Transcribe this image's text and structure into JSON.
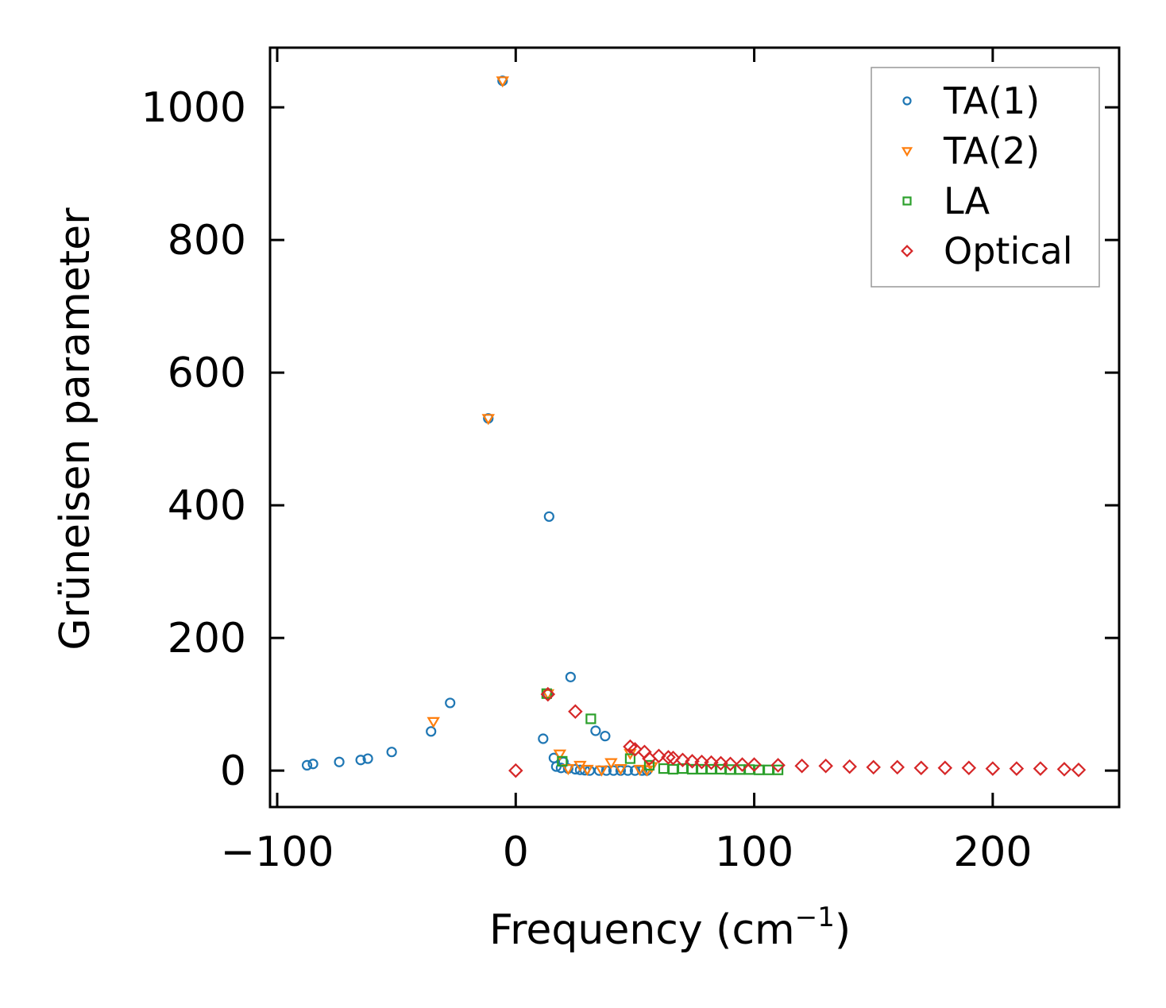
{
  "chart_data": {
    "type": "scatter",
    "title": "",
    "xlabel": "Frequency (cm",
    "xlabel_superscript": "−1",
    "xlabel_suffix": ")",
    "ylabel": "Grüneisen parameter",
    "xlim": [
      -103,
      253
    ],
    "ylim": [
      -55,
      1090
    ],
    "xticks": [
      -100,
      0,
      100,
      200
    ],
    "xtick_labels": [
      "−100",
      "0",
      "100",
      "200"
    ],
    "yticks": [
      0,
      200,
      400,
      600,
      800,
      1000
    ],
    "ytick_labels": [
      "0",
      "200",
      "400",
      "600",
      "800",
      "1000"
    ],
    "grid": false,
    "legend_position": "top-right",
    "series": [
      {
        "name": "TA(1)",
        "marker": "circle",
        "color": "#1f77b4",
        "points": [
          [
            -87.5,
            8
          ],
          [
            -85,
            10
          ],
          [
            -74,
            13
          ],
          [
            -65,
            16
          ],
          [
            -62,
            18
          ],
          [
            -52,
            28
          ],
          [
            -35.5,
            59
          ],
          [
            -27.5,
            102
          ],
          [
            -11.5,
            531
          ],
          [
            -5.5,
            1040
          ],
          [
            11.5,
            48
          ],
          [
            13.5,
            115
          ],
          [
            14,
            383
          ],
          [
            16,
            19
          ],
          [
            17,
            6
          ],
          [
            19,
            4
          ],
          [
            20,
            13
          ],
          [
            22,
            3
          ],
          [
            23,
            141
          ],
          [
            25,
            2
          ],
          [
            27,
            1
          ],
          [
            29,
            0.5
          ],
          [
            33.5,
            60
          ],
          [
            37.5,
            52
          ],
          [
            31,
            0
          ],
          [
            35,
            0
          ],
          [
            38,
            0
          ],
          [
            41,
            0
          ],
          [
            44,
            0
          ],
          [
            47,
            0
          ],
          [
            50,
            0
          ],
          [
            53,
            0
          ],
          [
            55,
            0
          ]
        ]
      },
      {
        "name": "TA(2)",
        "marker": "triangle-down",
        "color": "#ff7f0e",
        "points": [
          [
            -34.5,
            74
          ],
          [
            -11.5,
            531
          ],
          [
            -5.5,
            1040
          ],
          [
            13.5,
            116
          ],
          [
            18.5,
            25
          ],
          [
            27,
            8
          ],
          [
            40,
            12
          ],
          [
            48,
            26
          ],
          [
            57,
            6
          ],
          [
            22,
            3
          ],
          [
            30,
            2
          ],
          [
            36,
            1
          ],
          [
            44,
            3
          ],
          [
            52,
            2
          ],
          [
            55,
            1
          ]
        ]
      },
      {
        "name": "LA",
        "marker": "square",
        "color": "#2ca02c",
        "points": [
          [
            13,
            116
          ],
          [
            19.5,
            14
          ],
          [
            31.5,
            78
          ],
          [
            48,
            18
          ],
          [
            56,
            8
          ],
          [
            62,
            3
          ],
          [
            66,
            2
          ],
          [
            70,
            3
          ],
          [
            74,
            2
          ],
          [
            78,
            2
          ],
          [
            82,
            2
          ],
          [
            86,
            2
          ],
          [
            90,
            1.5
          ],
          [
            94,
            1.5
          ],
          [
            98,
            1.5
          ],
          [
            102,
            1
          ],
          [
            106,
            1
          ],
          [
            110,
            1
          ]
        ]
      },
      {
        "name": "Optical",
        "marker": "diamond",
        "color": "#d62728",
        "points": [
          [
            0,
            0
          ],
          [
            13.5,
            115
          ],
          [
            25,
            89
          ],
          [
            48,
            36
          ],
          [
            50,
            32
          ],
          [
            54,
            28
          ],
          [
            56,
            18
          ],
          [
            60,
            22
          ],
          [
            64,
            20
          ],
          [
            66,
            19
          ],
          [
            70,
            16
          ],
          [
            74,
            14
          ],
          [
            78,
            13
          ],
          [
            82,
            12
          ],
          [
            86,
            11
          ],
          [
            90,
            10
          ],
          [
            95,
            9
          ],
          [
            100,
            9
          ],
          [
            110,
            8
          ],
          [
            120,
            7
          ],
          [
            130,
            7
          ],
          [
            140,
            6
          ],
          [
            150,
            5
          ],
          [
            160,
            5
          ],
          [
            170,
            4
          ],
          [
            180,
            4
          ],
          [
            190,
            4
          ],
          [
            200,
            3
          ],
          [
            210,
            3
          ],
          [
            220,
            3
          ],
          [
            230,
            2
          ],
          [
            236,
            1
          ]
        ]
      }
    ]
  }
}
